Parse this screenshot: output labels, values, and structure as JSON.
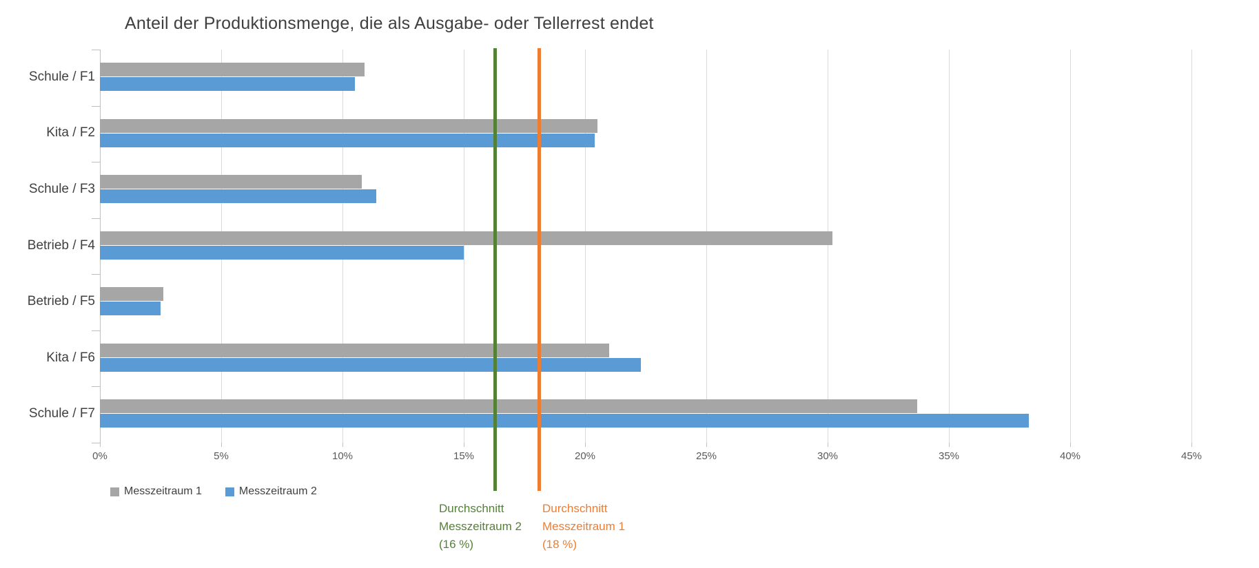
{
  "title": "Anteil der Produktionsmenge, die als Ausgabe- oder Tellerrest endet",
  "chart_data": {
    "type": "bar",
    "orientation": "horizontal",
    "title": "Anteil der Produktionsmenge, die als Ausgabe- oder Tellerrest endet",
    "categories": [
      "Schule / F1",
      "Kita / F2",
      "Schule / F3",
      "Betrieb / F4",
      "Betrieb / F5",
      "Kita / F6",
      "Schule / F7"
    ],
    "series": [
      {
        "name": "Messzeitraum 1",
        "color": "#a6a6a6",
        "values": [
          10.9,
          20.5,
          10.8,
          30.2,
          2.6,
          21.0,
          33.7
        ]
      },
      {
        "name": "Messzeitraum 2",
        "color": "#5b9bd5",
        "values": [
          10.5,
          20.4,
          11.4,
          15.0,
          2.5,
          22.3,
          38.3
        ]
      }
    ],
    "x_axis": {
      "min": 0,
      "max": 45,
      "step": 5,
      "tick_labels": [
        "0%",
        "5%",
        "10%",
        "15%",
        "20%",
        "25%",
        "30%",
        "35%",
        "40%",
        "45%"
      ]
    },
    "grid": true,
    "legend_position": "bottom-left",
    "legend": [
      {
        "label": "Messzeitraum 1",
        "color": "#a6a6a6"
      },
      {
        "label": "Messzeitraum 2",
        "color": "#5b9bd5"
      }
    ],
    "reference_lines": [
      {
        "name": "average-messzeitraum-2",
        "position_pct": 16.3,
        "stated_value": "16 %",
        "color": "#538135",
        "label_lines": [
          "Durchschnitt",
          "Messzeitraum 2",
          "(16 %)"
        ]
      },
      {
        "name": "average-messzeitraum-1",
        "position_pct": 18.1,
        "stated_value": "18 %",
        "color": "#ed7d31",
        "label_lines": [
          "Durchschnitt",
          "Messzeitraum 1",
          "(18 %)"
        ]
      }
    ]
  }
}
